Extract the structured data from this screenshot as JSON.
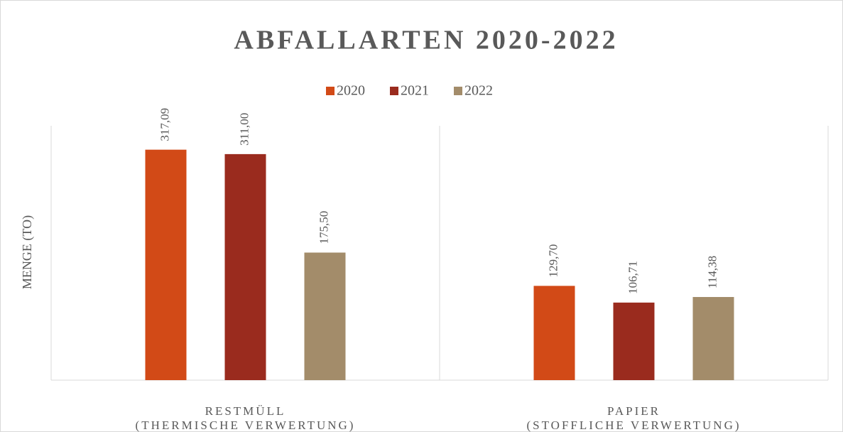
{
  "chart_data": {
    "type": "bar",
    "title": "ABFALLARTEN 2020-2022",
    "y_label": "MENGE (TO)",
    "categories": [
      [
        "RESTMÜLL",
        "(THERMISCHE VERWERTUNG)"
      ],
      [
        "PAPIER",
        "(STOFFLICHE VERWERTUNG)"
      ]
    ],
    "series": [
      {
        "name": "2020",
        "color": "#d24a17",
        "values": [
          317.09,
          129.7
        ],
        "value_labels": [
          "317,09",
          "129,70"
        ]
      },
      {
        "name": "2021",
        "color": "#9a2b1e",
        "values": [
          311.0,
          106.71
        ],
        "value_labels": [
          "311,00",
          "106,71"
        ]
      },
      {
        "name": "2022",
        "color": "#a38c6a",
        "values": [
          175.5,
          114.38
        ],
        "value_labels": [
          "175,50",
          "114,38"
        ]
      }
    ],
    "ylim": [
      0,
      350
    ],
    "legend": "top"
  }
}
